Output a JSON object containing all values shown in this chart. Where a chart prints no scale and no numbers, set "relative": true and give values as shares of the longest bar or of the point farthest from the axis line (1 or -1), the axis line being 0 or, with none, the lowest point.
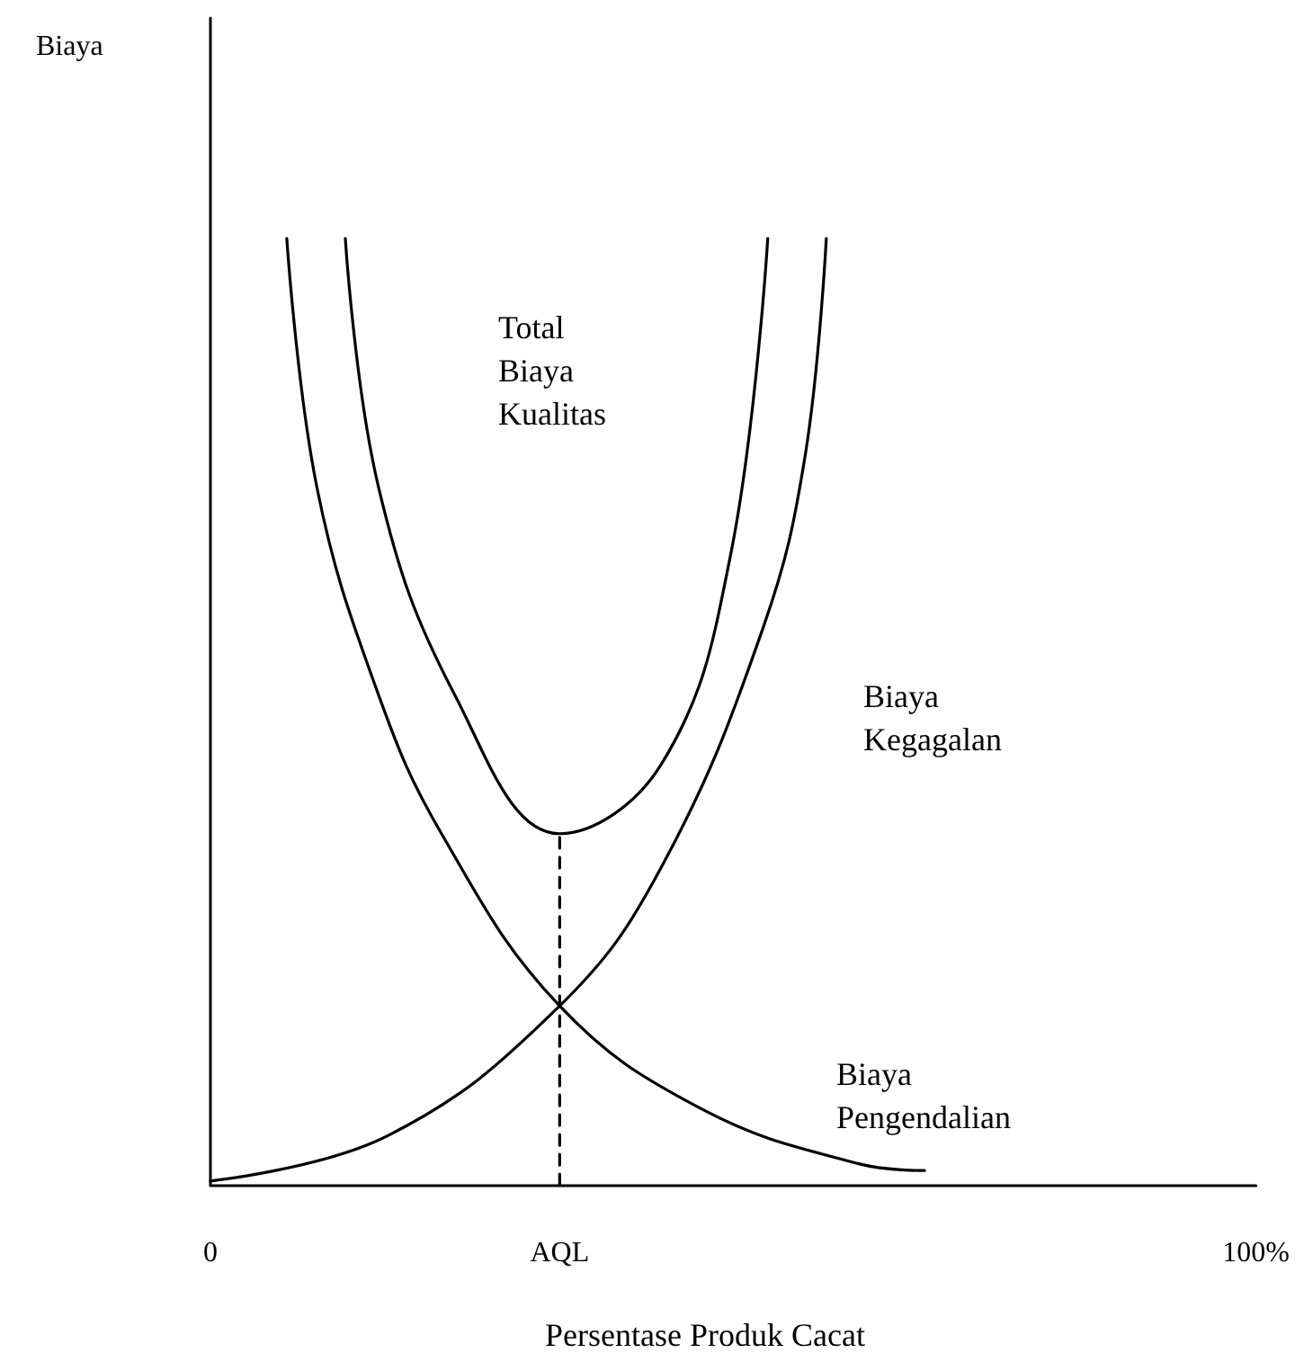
{
  "chart_data": {
    "type": "line",
    "relative": true,
    "xlabel": "Persentase Produk Cacat",
    "xlim": [
      0,
      100
    ],
    "xticks": [
      0,
      {
        "value": 33.4,
        "label": "AQL"
      },
      {
        "value": 100,
        "label": "100%"
      }
    ],
    "grid": false,
    "marker": "none",
    "line_style": "solid",
    "series": [
      {
        "color": "#000000",
        "x": [
          7.3,
          10.2,
          16.1,
          22.1,
          33.4,
          47.0,
          62.1,
          68.3
        ],
        "values": [
          1.0,
          0.736,
          0.517,
          0.371,
          0.189,
          0.08,
          0.022,
          0.015
        ]
      },
      {
        "color": "#000000",
        "x": [
          0,
          16.8,
          33.4,
          43.1,
          52.9,
          56.9,
          58.9
        ],
        "values": [
          0.004,
          0.051,
          0.189,
          0.335,
          0.59,
          0.772,
          1.0
        ]
      },
      {
        "color": "#000000",
        "x": [
          12.9,
          16.1,
          23.4,
          33.4,
          43.1,
          49.7,
          53.3
        ],
        "values": [
          1.0,
          0.736,
          0.517,
          0.371,
          0.444,
          0.663,
          1.0
        ]
      },
      {
        "color": "#000000",
        "line_style": "dashed",
        "x": [
          33.4,
          33.4
        ],
        "values": [
          0,
          0.371
        ]
      }
    ],
    "annotations": [
      "Biaya",
      "Total Biaya Kualitas",
      "Biaya Kegagalan",
      "Biaya Pengendalian"
    ]
  }
}
